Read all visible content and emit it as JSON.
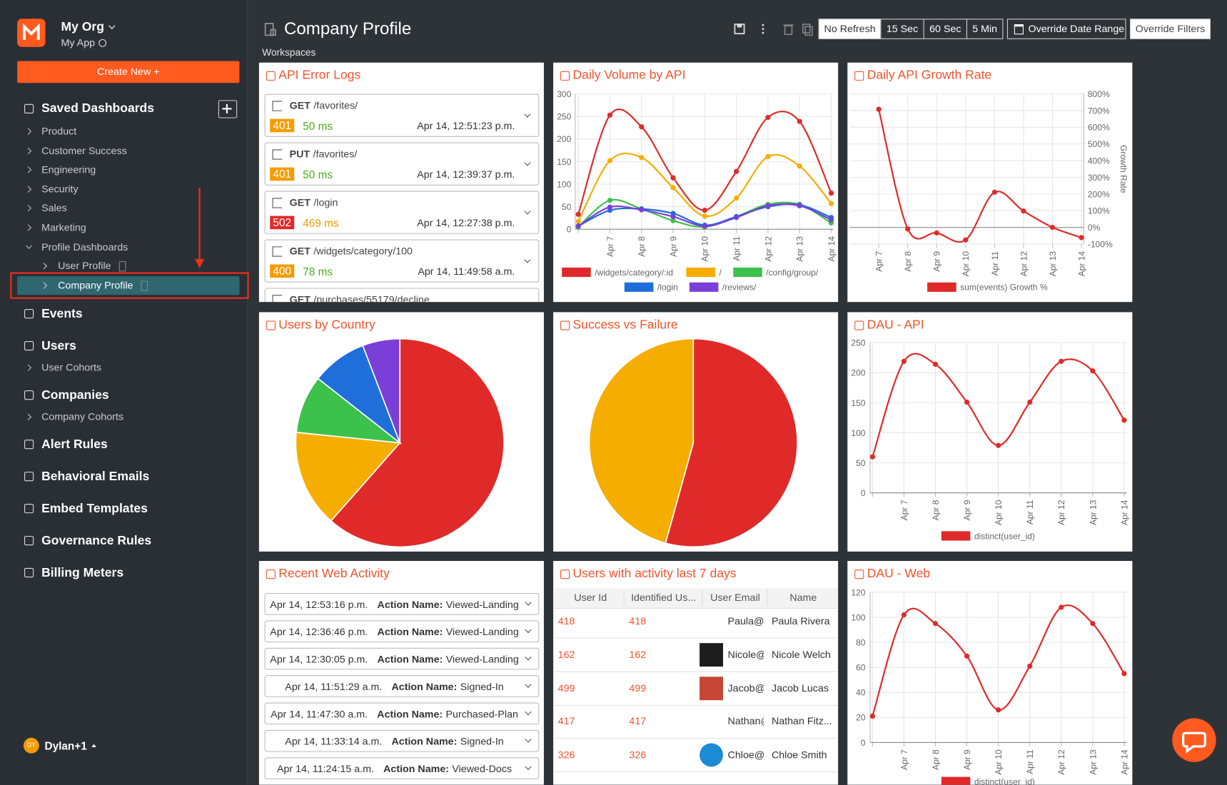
{
  "sidebar": {
    "org": "My Org",
    "app": "My App",
    "create_button": "Create New +",
    "saved_dashboards": {
      "title": "Saved Dashboards",
      "items": [
        "Product",
        "Customer Success",
        "Engineering",
        "Security",
        "Sales",
        "Marketing"
      ],
      "group": {
        "title": "Profile Dashboards",
        "items": [
          "User Profile",
          "Company Profile"
        ]
      }
    },
    "nav": [
      {
        "title": "Events"
      },
      {
        "title": "Users",
        "items": [
          "User Cohorts"
        ]
      },
      {
        "title": "Companies",
        "items": [
          "Company Cohorts"
        ]
      },
      {
        "title": "Alert Rules"
      },
      {
        "title": "Behavioral Emails"
      },
      {
        "title": "Embed Templates"
      },
      {
        "title": "Governance Rules"
      },
      {
        "title": "Billing Meters"
      }
    ],
    "user": {
      "initials": "DY",
      "name": "Dylan+1"
    }
  },
  "header": {
    "title": "Company Profile",
    "subtitle": "Workspaces",
    "refresh": [
      "No Refresh",
      "15 Sec",
      "60 Sec",
      "5 Min"
    ],
    "refresh_active": 0,
    "date_range": "Override Date Range",
    "filters": "Override Filters"
  },
  "panels": [
    {
      "title": "API Error Logs",
      "entries": [
        {
          "method": "GET",
          "path": "/favorites/",
          "status": "401",
          "status_color": "#f59c00",
          "latency": "50 ms",
          "latency_color": "#4caf1a",
          "time": "Apr 14, 12:51:23 p.m."
        },
        {
          "method": "PUT",
          "path": "/favorites/",
          "status": "401",
          "status_color": "#f59c00",
          "latency": "50 ms",
          "latency_color": "#4caf1a",
          "time": "Apr 14, 12:39:37 p.m."
        },
        {
          "method": "GET",
          "path": "/login",
          "status": "502",
          "status_color": "#e02a2a",
          "latency": "469 ms",
          "latency_color": "#f59c00",
          "time": "Apr 14, 12:27:38 p.m."
        },
        {
          "method": "GET",
          "path": "/widgets/category/100",
          "status": "400",
          "status_color": "#f59c00",
          "latency": "78 ms",
          "latency_color": "#4caf1a",
          "time": "Apr 14, 11:49:58 a.m."
        },
        {
          "method": "GET",
          "path": "/purchases/55179/decline"
        }
      ]
    },
    {
      "title": "Daily Volume by API",
      "chart": {
        "type": "line",
        "categories": [
          null,
          "Apr 7",
          "Apr 8",
          "Apr 9",
          "Apr 10",
          "Apr 11",
          "Apr 12",
          "Apr 13",
          "Apr 14"
        ],
        "series": [
          {
            "name": "/widgets/category/:id",
            "color": "#e02a2a",
            "values": [
              33,
              253,
              227,
              114,
              42,
              128,
              248,
              239,
              80
            ]
          },
          {
            "name": "/",
            "color": "#f5ad00",
            "values": [
              17,
              152,
              159,
              92,
              29,
              69,
              161,
              140,
              57
            ]
          },
          {
            "name": "/config/group/",
            "color": "#3cc14c",
            "values": [
              5,
              64,
              45,
              19,
              5,
              28,
              55,
              55,
              14
            ]
          },
          {
            "name": "/login",
            "color": "#1e6fd9",
            "values": [
              7,
              42,
              45,
              35,
              9,
              28,
              50,
              54,
              26
            ]
          },
          {
            "name": "/reviews/",
            "color": "#7b3fd9",
            "values": [
              7,
              49,
              43,
              28,
              7,
              26,
              52,
              52,
              21
            ]
          }
        ],
        "ylim": [
          0,
          300
        ],
        "yticks": [
          0,
          50,
          100,
          150,
          200,
          250,
          300
        ],
        "grid": true
      }
    },
    {
      "title": "Daily API Growth Rate",
      "chart": {
        "type": "line",
        "categories": [
          "Apr 7",
          "Apr 8",
          "Apr 9",
          "Apr 10",
          "Apr 11",
          "Apr 12",
          "Apr 13",
          "Apr 14"
        ],
        "series": [
          {
            "name": "sum(events)  Growth %",
            "color": "#e02a2a",
            "values": [
              708,
              -9,
              -33,
              -75,
              211,
              98,
              0,
              -61
            ]
          }
        ],
        "ylim": [
          -100,
          800
        ],
        "yticks": [
          {
            "value": -100,
            "label": "-100%"
          },
          {
            "value": 0,
            "label": "0%"
          },
          {
            "value": 100,
            "label": "100%"
          },
          {
            "value": 200,
            "label": "200%"
          },
          {
            "value": 300,
            "label": "300%"
          },
          {
            "value": 400,
            "label": "400%"
          },
          {
            "value": 500,
            "label": "500%"
          },
          {
            "value": 600,
            "label": "600%"
          },
          {
            "value": 700,
            "label": "700%"
          },
          {
            "value": 800,
            "label": "800%"
          }
        ],
        "y_label": "Growth Rate",
        "axis_side": "right",
        "grid": true
      }
    },
    {
      "title": "Users by Country",
      "chart": {
        "type": "pie",
        "values": [
          61.5,
          15.1,
          9,
          8.6,
          5.8
        ],
        "colors": [
          "#e02a2a",
          "#f5ad00",
          "#3cc14c",
          "#1e6fd9",
          "#7b3fd9"
        ]
      }
    },
    {
      "title": "Success vs Failure",
      "chart": {
        "type": "pie",
        "values": [
          54.3,
          45.7
        ],
        "colors": [
          "#e02a2a",
          "#f5ad00"
        ]
      }
    },
    {
      "title": "DAU - API",
      "chart": {
        "type": "line",
        "categories": [
          null,
          "Apr 7",
          "Apr 8",
          "Apr 9",
          "Apr 10",
          "Apr 11",
          "Apr 12",
          "Apr 13",
          "Apr 14"
        ],
        "series": [
          {
            "name": "distinct(user_id)",
            "color": "#e02a2a",
            "values": [
              60,
              219,
              214,
              151,
              79,
              151,
              219,
              203,
              121
            ]
          }
        ],
        "ylim": [
          0,
          250
        ],
        "yticks": [
          0,
          50,
          100,
          150,
          200,
          250
        ],
        "grid": true
      }
    },
    {
      "title": "Recent Web Activity",
      "rows": [
        {
          "time": "Apr 14, 12:53:16 p.m.",
          "label": "Action Name:",
          "action": "Viewed-Landing"
        },
        {
          "time": "Apr 14, 12:36:46 p.m.",
          "label": "Action Name:",
          "action": "Viewed-Landing"
        },
        {
          "time": "Apr 14, 12:30:05 p.m.",
          "label": "Action Name:",
          "action": "Viewed-Landing"
        },
        {
          "time": "Apr 14, 11:51:29 a.m.",
          "label": "Action Name:",
          "action": "Signed-In"
        },
        {
          "time": "Apr 14, 11:47:30 a.m.",
          "label": "Action Name:",
          "action": "Purchased-Plan"
        },
        {
          "time": "Apr 14, 11:33:14 a.m.",
          "label": "Action Name:",
          "action": "Signed-In"
        },
        {
          "time": "Apr 14, 11:24:15 a.m.",
          "label": "Action Name:",
          "action": "Viewed-Docs"
        }
      ]
    },
    {
      "title": "Users with activity last 7 days",
      "columns": [
        "User Id",
        "Identified Us...",
        "User Email",
        "Name"
      ],
      "rows": [
        [
          "418",
          "418",
          "Paula@(",
          "Paula Rivera"
        ],
        [
          "162",
          "162",
          "Nicole@",
          "Nicole Welch"
        ],
        [
          "499",
          "499",
          "Jacob@(",
          "Jacob Lucas"
        ],
        [
          "417",
          "417",
          "Nathan@",
          "Nathan Fitz..."
        ],
        [
          "326",
          "326",
          "Chloe@s",
          "Chloe Smith"
        ]
      ],
      "logo_colors": [
        "#ffffff",
        "#1d1d1d",
        "#c74634",
        "#ffffff",
        "#1d8ad6"
      ]
    },
    {
      "title": "DAU - Web",
      "chart": {
        "type": "line",
        "categories": [
          null,
          "Apr 7",
          "Apr 8",
          "Apr 9",
          "Apr 10",
          "Apr 11",
          "Apr 12",
          "Apr 13",
          "Apr 14"
        ],
        "series": [
          {
            "name": "distinct(user_id)",
            "color": "#e02a2a",
            "values": [
              21,
              102,
              95,
              69,
              26,
              61,
              108,
              95,
              55
            ]
          }
        ],
        "ylim": [
          0,
          120
        ],
        "yticks": [
          0,
          20,
          40,
          60,
          80,
          100,
          120
        ],
        "grid": true
      }
    }
  ]
}
